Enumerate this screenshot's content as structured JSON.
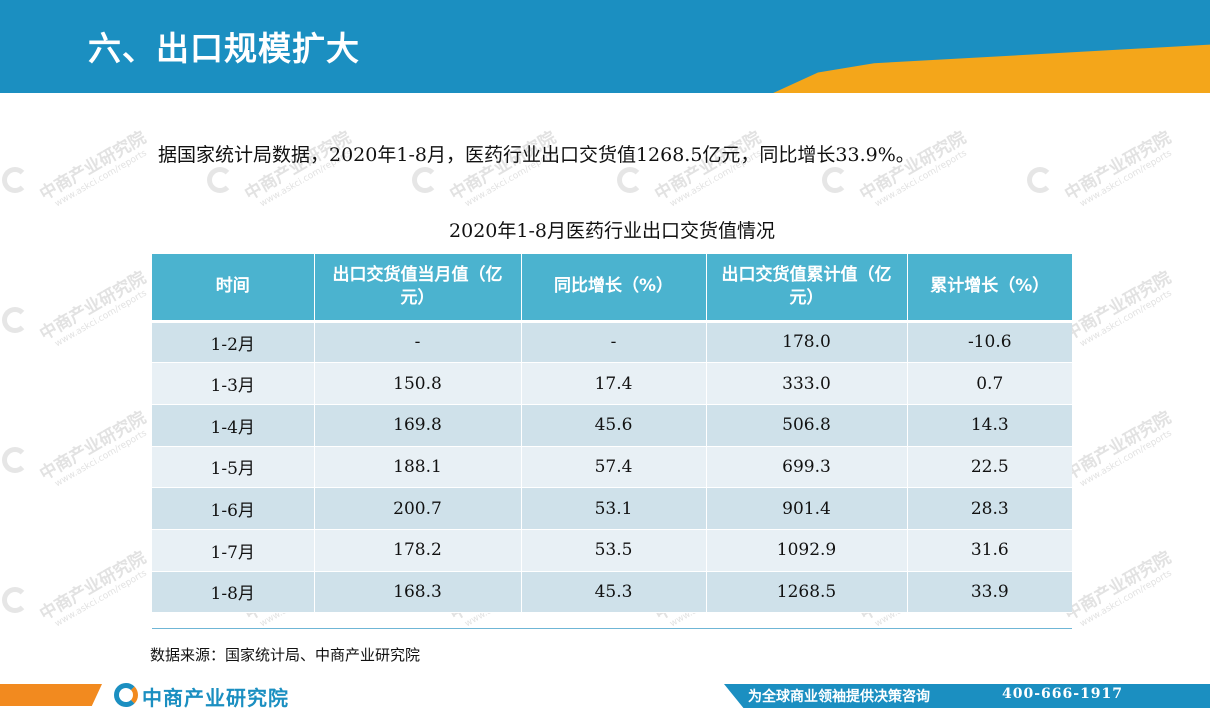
{
  "header": {
    "title": "六、出口规模扩大"
  },
  "intro": {
    "text": "据国家统计局数据，2020年1-8月，医药行业出口交货值1268.5亿元，同比增长33.9%。"
  },
  "table": {
    "title": "2020年1-8月医药行业出口交货值情况",
    "headers": [
      "时间",
      "出口交货值当月值（亿元）",
      "同比增长（%）",
      "出口交货值累计值（亿元）",
      "累计增长（%）"
    ],
    "rows": [
      [
        "1-2月",
        "-",
        "-",
        "178.0",
        "-10.6"
      ],
      [
        "1-3月",
        "150.8",
        "17.4",
        "333.0",
        "0.7"
      ],
      [
        "1-4月",
        "169.8",
        "45.6",
        "506.8",
        "14.3"
      ],
      [
        "1-5月",
        "188.1",
        "57.4",
        "699.3",
        "22.5"
      ],
      [
        "1-6月",
        "200.7",
        "53.1",
        "901.4",
        "28.3"
      ],
      [
        "1-7月",
        "178.2",
        "53.5",
        "1092.9",
        "31.6"
      ],
      [
        "1-8月",
        "168.3",
        "45.3",
        "1268.5",
        "33.9"
      ]
    ]
  },
  "source": {
    "text": "数据来源：国家统计局、中商产业研究院"
  },
  "watermark": {
    "name": "中商产业研究院",
    "url": "www.askci.com/reports"
  },
  "footer": {
    "logo_text": "中商产业研究院",
    "slogan": "为全球商业领袖提供决策咨询",
    "phone": "400-666-1917"
  },
  "colors": {
    "brand_blue": "#1b8fc1",
    "accent_orange": "#f4a61a",
    "table_header": "#4bb3cf",
    "row_dark": "#cfe1ea",
    "row_light": "#e8f0f5"
  }
}
